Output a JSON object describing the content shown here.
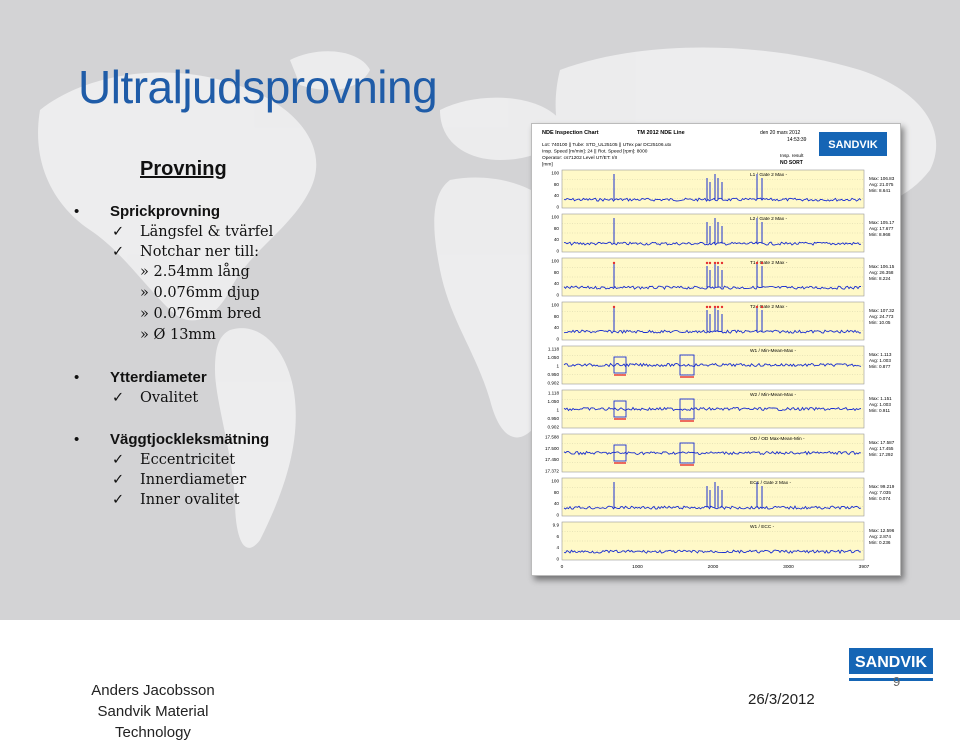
{
  "slide": {
    "title": "Ultraljudsprovning",
    "subheading": "Provning",
    "sections": [
      {
        "label": "Sprickprovning",
        "checks": [
          "Längsfel & tvärfel",
          "Notchar ner till:"
        ],
        "subs": [
          "» 2.54mm lång",
          "» 0.076mm djup",
          "» 0.076mm bred",
          "» Ø 13mm"
        ]
      },
      {
        "label": "Ytterdiameter",
        "checks": [
          "Ovalitet"
        ]
      },
      {
        "label": "Väggtjockleksmätning",
        "checks": [
          "Eccentricitet",
          "Innerdiameter",
          "Inner ovalitet"
        ]
      }
    ],
    "check_mark": "✓",
    "footer": {
      "author": "Anders Jacobsson",
      "org": "Sandvik Material Technology",
      "date": "26/3/2012",
      "page": "9"
    },
    "logo_text": "SANDVIK",
    "colors": {
      "title": "#1f5ca8",
      "signal": "#1a2fd0",
      "panel_bg": "#fff9c8",
      "limit_line": "#e53030",
      "logo": "#1565b5"
    }
  },
  "chart_data": {
    "type": "line",
    "title": "NDE Inspection Chart",
    "header": {
      "system": "TM 2012 NDE Line",
      "datetime": "den 20 mars 2012\n14:53:39",
      "lines": [
        "Lot: 740100 || Tube: STD_UL25105 || UTex par  DC25106.utx",
        "Insp. Speed [m/min]: 24 || Rot. Speed [rpm]: 8000",
        "Operator: cs71202 Level UT/ET: I/II",
        "[mm]"
      ],
      "result_label": "Insp. result",
      "result_value": "NO SORT"
    },
    "x_ticks": [
      "0",
      "1000",
      "2000",
      "3000",
      "3907"
    ],
    "panels": [
      {
        "name": "L1 / Gate 2 Max -",
        "y_ticks": [
          "100",
          "80",
          "40",
          "0"
        ],
        "stats": [
          "Max: 106.83",
          "Avg: 21.075",
          "Min: 8.641"
        ]
      },
      {
        "name": "L2 / Gate 2 Max -",
        "y_ticks": [
          "100",
          "80",
          "40",
          "0"
        ],
        "stats": [
          "Max: 105.17",
          "Avg: 17.677",
          "Min: 8.968"
        ]
      },
      {
        "name": "T1 / Gate 2 Max -",
        "y_ticks": [
          "100",
          "80",
          "40",
          "0"
        ],
        "stats": [
          "Max: 106.15",
          "Avg: 26.358",
          "Min: 8.224"
        ]
      },
      {
        "name": "T2 / Gate 2 Max -",
        "y_ticks": [
          "100",
          "80",
          "40",
          "0"
        ],
        "stats": [
          "Max: 107.32",
          "Avg: 24.773",
          "Min: 10.05"
        ]
      },
      {
        "name": "W1 / Min-Mean-Max -",
        "y_ticks": [
          "1.118",
          "1.050",
          "1",
          "0.950",
          "0.902"
        ],
        "stats": [
          "Max: 1.113",
          "Avg: 1.003",
          "Min: 0.877"
        ]
      },
      {
        "name": "W2 / Min-Mean-Max -",
        "y_ticks": [
          "1.118",
          "1.050",
          "1",
          "0.950",
          "0.902"
        ],
        "stats": [
          "Max: 1.151",
          "Avg: 1.003",
          "Min: 0.911"
        ]
      },
      {
        "name": "OD / OD Max-Mean-Min -",
        "y_ticks": [
          "17.588",
          "17.500",
          "17.450",
          "17.372"
        ],
        "stats": [
          "Max: 17.587",
          "Avg: 17.455",
          "Min: 17.292"
        ]
      },
      {
        "name": "EC1 / Gate 2 Max -",
        "y_ticks": [
          "100",
          "80",
          "40",
          "0"
        ],
        "stats": [
          "Max: 99.219",
          "Avg: 7.035",
          "Min: 0.074"
        ]
      },
      {
        "name": "W1 / ECC -",
        "y_ticks": [
          "9.9",
          "6",
          "4",
          "0"
        ],
        "stats": [
          "Max: 12.596",
          "Avg: 2.874",
          "Min: 0.236"
        ]
      }
    ]
  }
}
